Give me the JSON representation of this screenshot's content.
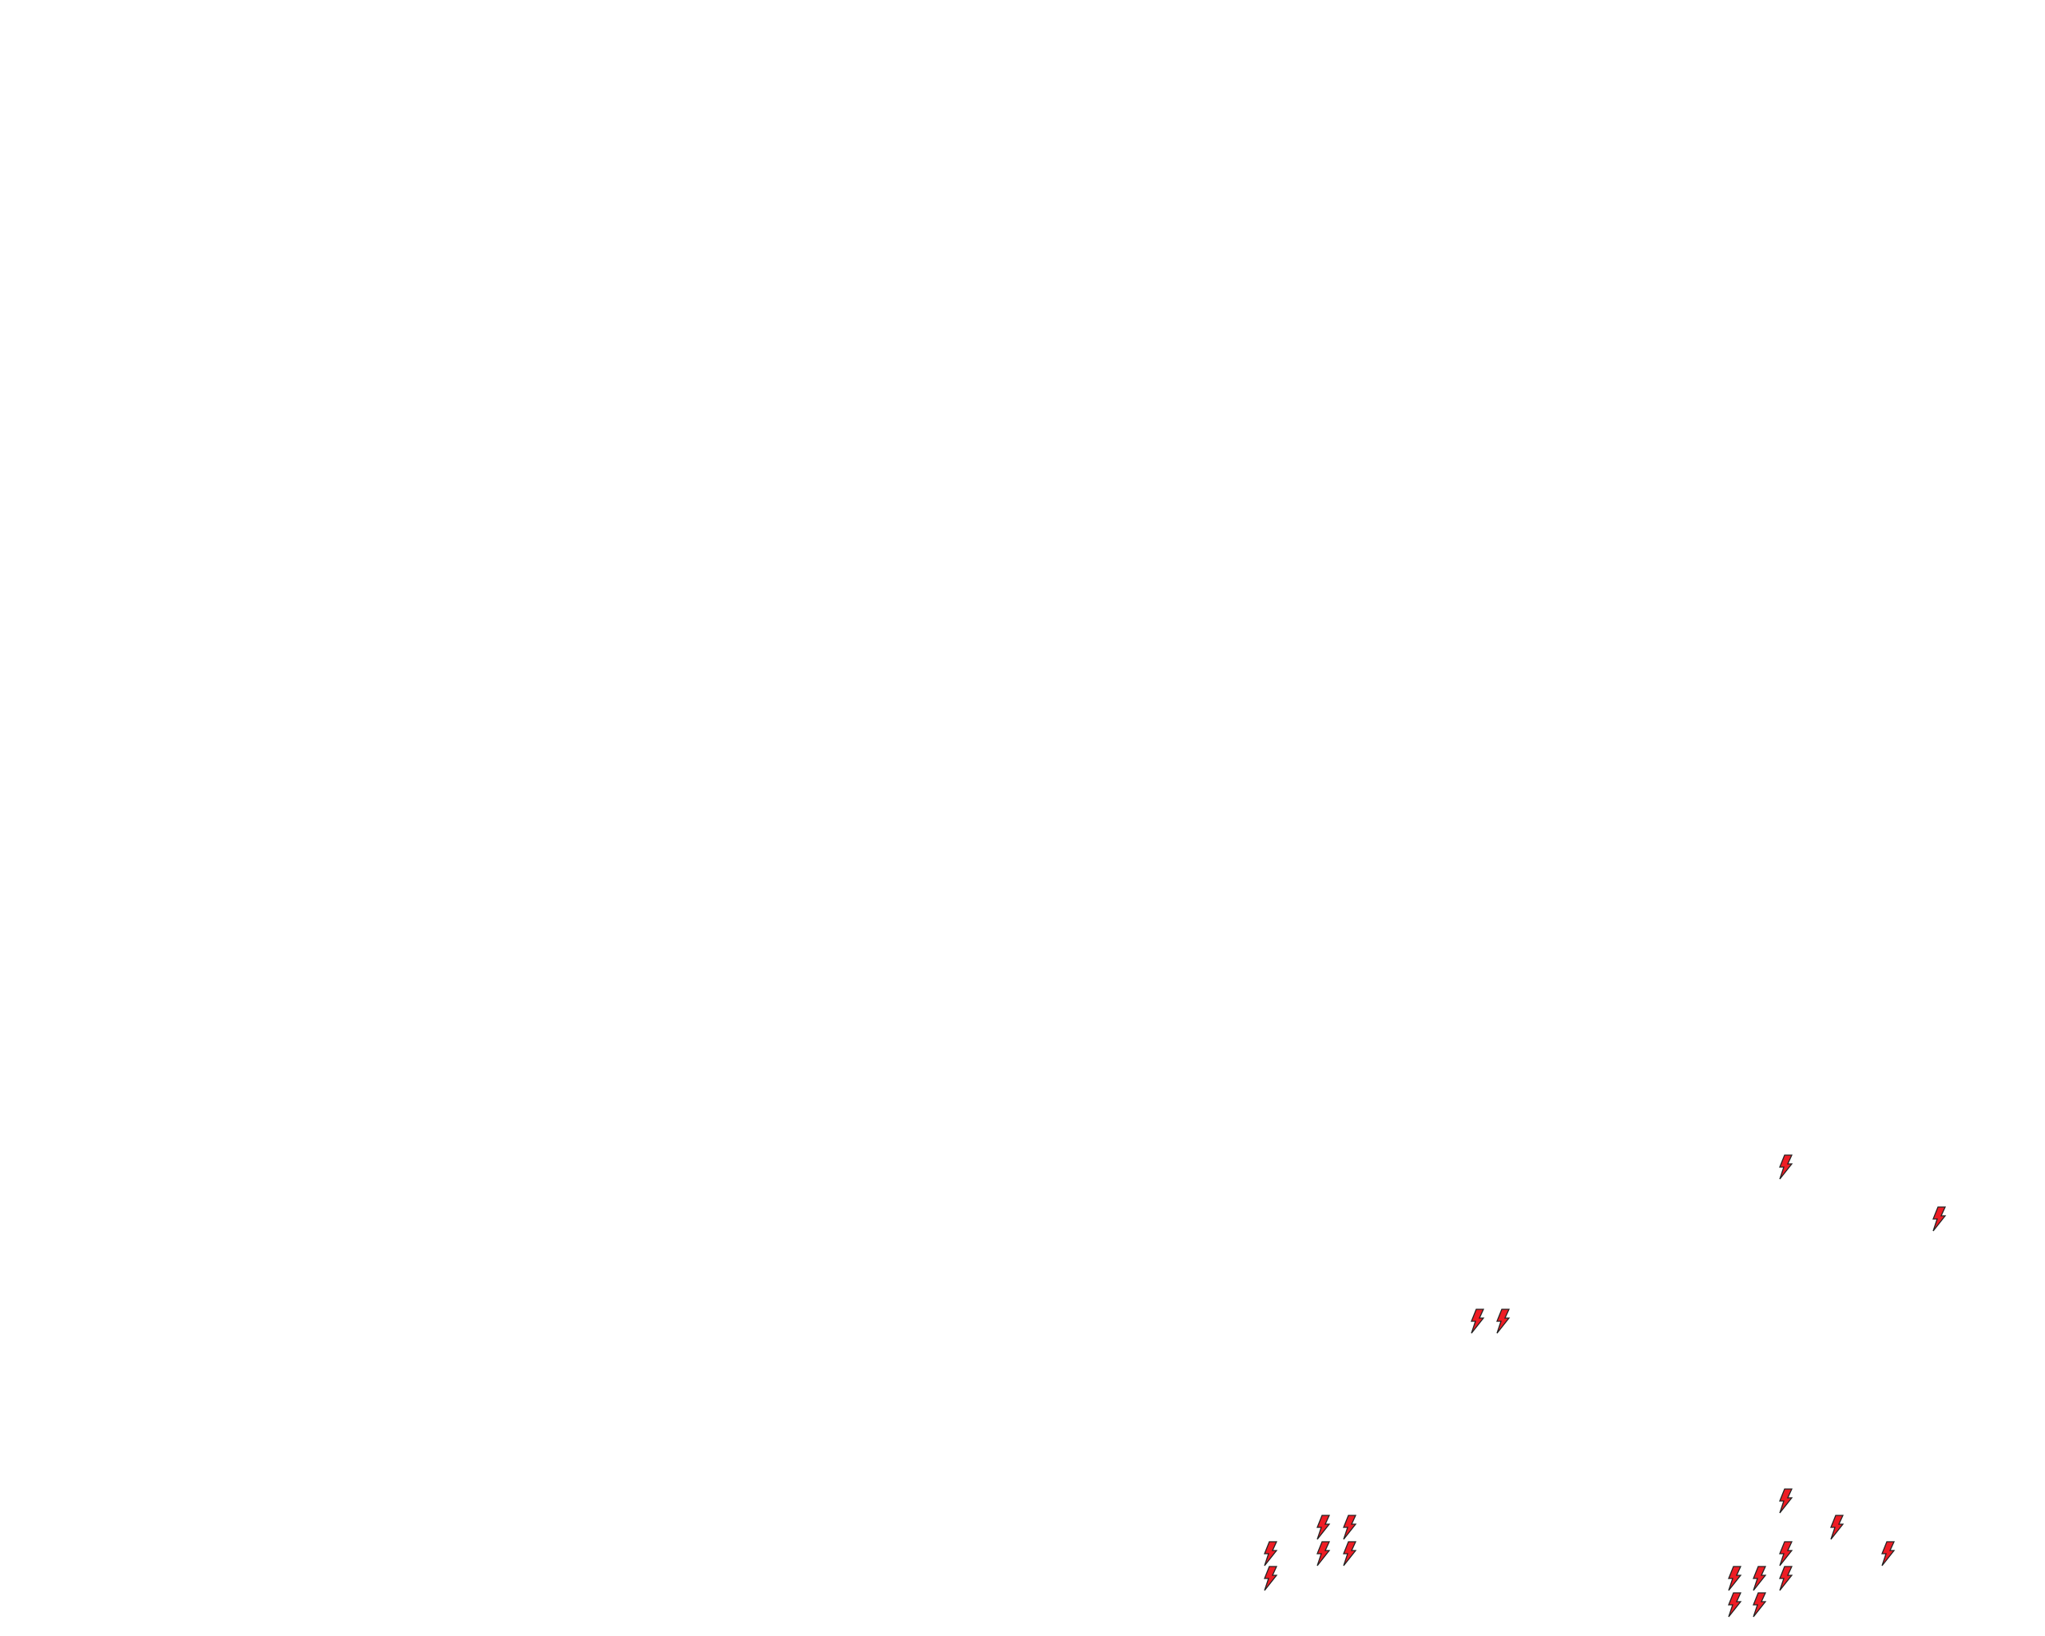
{
  "map": {
    "background": "#ffffff",
    "marker_icon": "lightning-bolt-icon",
    "marker_fill": "#ee1c24",
    "marker_stroke": "#222222",
    "marker_count": 19
  }
}
